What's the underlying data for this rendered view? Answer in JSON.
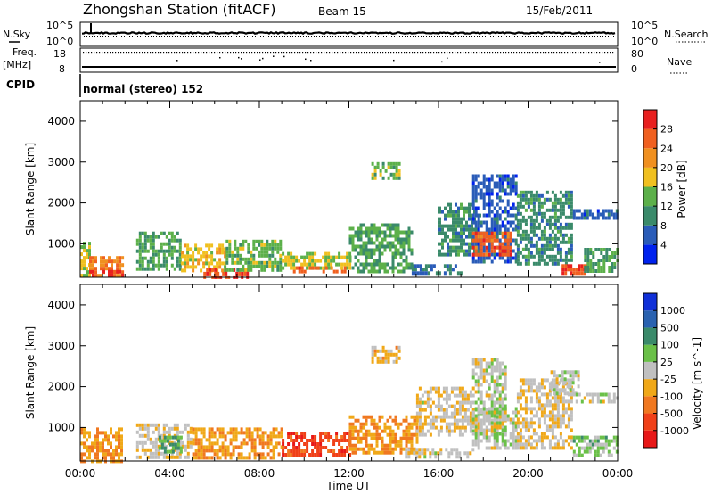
{
  "header": {
    "title": "Zhongshan Station (fitACF)",
    "beam": "Beam 15",
    "date": "15/Feb/2011"
  },
  "strip": {
    "nsky_label": "N.Sky",
    "nsky_ticks": [
      "10^5",
      "10^0"
    ],
    "nsearch_label": "N.Search",
    "nsearch_ticks": [
      "10^5",
      "10^0"
    ],
    "freq_label": "Freq.",
    "freq_unit": "[MHz]",
    "freq_ticks": [
      "18",
      "8"
    ],
    "nave_label": "Nave",
    "nave_ticks": [
      "80",
      "0"
    ],
    "cpid_label": "CPID",
    "cpid_value": "normal (stereo) 152"
  },
  "axes": {
    "ylabel": "Slant Range [km]",
    "xlabel": "Time UT",
    "ylim": [
      180,
      4500
    ],
    "yticks": [
      "4000",
      "3000",
      "2000",
      "1000"
    ],
    "xlim": [
      0,
      24
    ],
    "xticks": [
      "00:00",
      "04:00",
      "08:00",
      "12:00",
      "16:00",
      "20:00",
      "00:00"
    ]
  },
  "colors": {
    "power": [
      "#0022ee",
      "#2a5cb8",
      "#3a8a6a",
      "#5cb04a",
      "#f0c020",
      "#f09020",
      "#f06020",
      "#e82020"
    ],
    "velocity": [
      "#e81818",
      "#f04018",
      "#f07820",
      "#f0a818",
      "#c0c0c0",
      "#6ac048",
      "#3a8a6a",
      "#2a62b0",
      "#1030d8"
    ]
  },
  "chart_data": [
    {
      "type": "heatmap",
      "name": "Power",
      "colorbar_label": "Power [dB]",
      "colorbar_ticks": [
        "28",
        "24",
        "20",
        "16",
        "12",
        "8",
        "4"
      ],
      "zlim": [
        0,
        32
      ],
      "regions": [
        {
          "t": [
            0.0,
            0.4
          ],
          "r": [
            200,
            1050
          ],
          "z": 16
        },
        {
          "t": [
            0.4,
            1.9
          ],
          "r": [
            200,
            700
          ],
          "z": 24
        },
        {
          "t": [
            0.4,
            1.9
          ],
          "r": [
            200,
            360
          ],
          "z": 30
        },
        {
          "t": [
            2.5,
            4.5
          ],
          "r": [
            350,
            1300
          ],
          "z": 12
        },
        {
          "t": [
            4.5,
            6.5
          ],
          "r": [
            350,
            1000
          ],
          "z": 18
        },
        {
          "t": [
            5.5,
            7.5
          ],
          "r": [
            200,
            400
          ],
          "z": 28
        },
        {
          "t": [
            6.5,
            9.0
          ],
          "r": [
            350,
            1100
          ],
          "z": 14
        },
        {
          "t": [
            9.0,
            12.0
          ],
          "r": [
            400,
            800
          ],
          "z": 16
        },
        {
          "t": [
            9.5,
            12.0
          ],
          "r": [
            300,
            450
          ],
          "z": 26
        },
        {
          "t": [
            12.0,
            14.8
          ],
          "r": [
            300,
            1500
          ],
          "z": 12
        },
        {
          "t": [
            13.0,
            14.3
          ],
          "r": [
            2600,
            3000
          ],
          "z": 14
        },
        {
          "t": [
            14.8,
            17.0
          ],
          "r": [
            300,
            500
          ],
          "z": 8
        },
        {
          "t": [
            16.0,
            17.8
          ],
          "r": [
            700,
            2000
          ],
          "z": 10
        },
        {
          "t": [
            17.5,
            19.5
          ],
          "r": [
            600,
            2700
          ],
          "z": 6
        },
        {
          "t": [
            17.5,
            19.2
          ],
          "r": [
            700,
            1300
          ],
          "z": 26
        },
        {
          "t": [
            19.5,
            22.0
          ],
          "r": [
            500,
            2300
          ],
          "z": 10
        },
        {
          "t": [
            21.5,
            22.8
          ],
          "r": [
            300,
            500
          ],
          "z": 28
        },
        {
          "t": [
            22.0,
            24.0
          ],
          "r": [
            1600,
            1850
          ],
          "z": 6
        },
        {
          "t": [
            22.5,
            24.0
          ],
          "r": [
            300,
            900
          ],
          "z": 12
        }
      ]
    },
    {
      "type": "heatmap",
      "name": "Velocity",
      "colorbar_label": "Velocity [m s^-1]",
      "colorbar_ticks": [
        "1000",
        "500",
        "100",
        "25",
        "-25",
        "-100",
        "-500",
        "-1000"
      ],
      "zlim": [
        -1500,
        1500
      ],
      "regions": [
        {
          "t": [
            0.0,
            1.9
          ],
          "r": [
            200,
            1000
          ],
          "z": -500
        },
        {
          "t": [
            2.5,
            5.0
          ],
          "r": [
            300,
            1100
          ],
          "z": -100
        },
        {
          "t": [
            3.5,
            4.5
          ],
          "r": [
            400,
            800
          ],
          "z": 500
        },
        {
          "t": [
            5.0,
            9.0
          ],
          "r": [
            300,
            1000
          ],
          "z": -500
        },
        {
          "t": [
            9.0,
            12.0
          ],
          "r": [
            300,
            900
          ],
          "z": -1000
        },
        {
          "t": [
            12.0,
            15.0
          ],
          "r": [
            400,
            1300
          ],
          "z": -500
        },
        {
          "t": [
            13.0,
            14.3
          ],
          "r": [
            2600,
            3000
          ],
          "z": -300
        },
        {
          "t": [
            14.5,
            17.5
          ],
          "r": [
            250,
            500
          ],
          "z": -75
        },
        {
          "t": [
            15.0,
            17.5
          ],
          "r": [
            800,
            2000
          ],
          "z": -100
        },
        {
          "t": [
            17.5,
            19.0
          ],
          "r": [
            800,
            2700
          ],
          "z": 0
        },
        {
          "t": [
            17.5,
            19.5
          ],
          "r": [
            500,
            1500
          ],
          "z": 50
        },
        {
          "t": [
            19.5,
            22.0
          ],
          "r": [
            500,
            2200
          ],
          "z": -100
        },
        {
          "t": [
            21.0,
            22.3
          ],
          "r": [
            1800,
            2400
          ],
          "z": 0
        },
        {
          "t": [
            22.0,
            24.0
          ],
          "r": [
            1600,
            1850
          ],
          "z": 0
        },
        {
          "t": [
            22.0,
            24.0
          ],
          "r": [
            300,
            800
          ],
          "z": 300
        }
      ]
    }
  ]
}
